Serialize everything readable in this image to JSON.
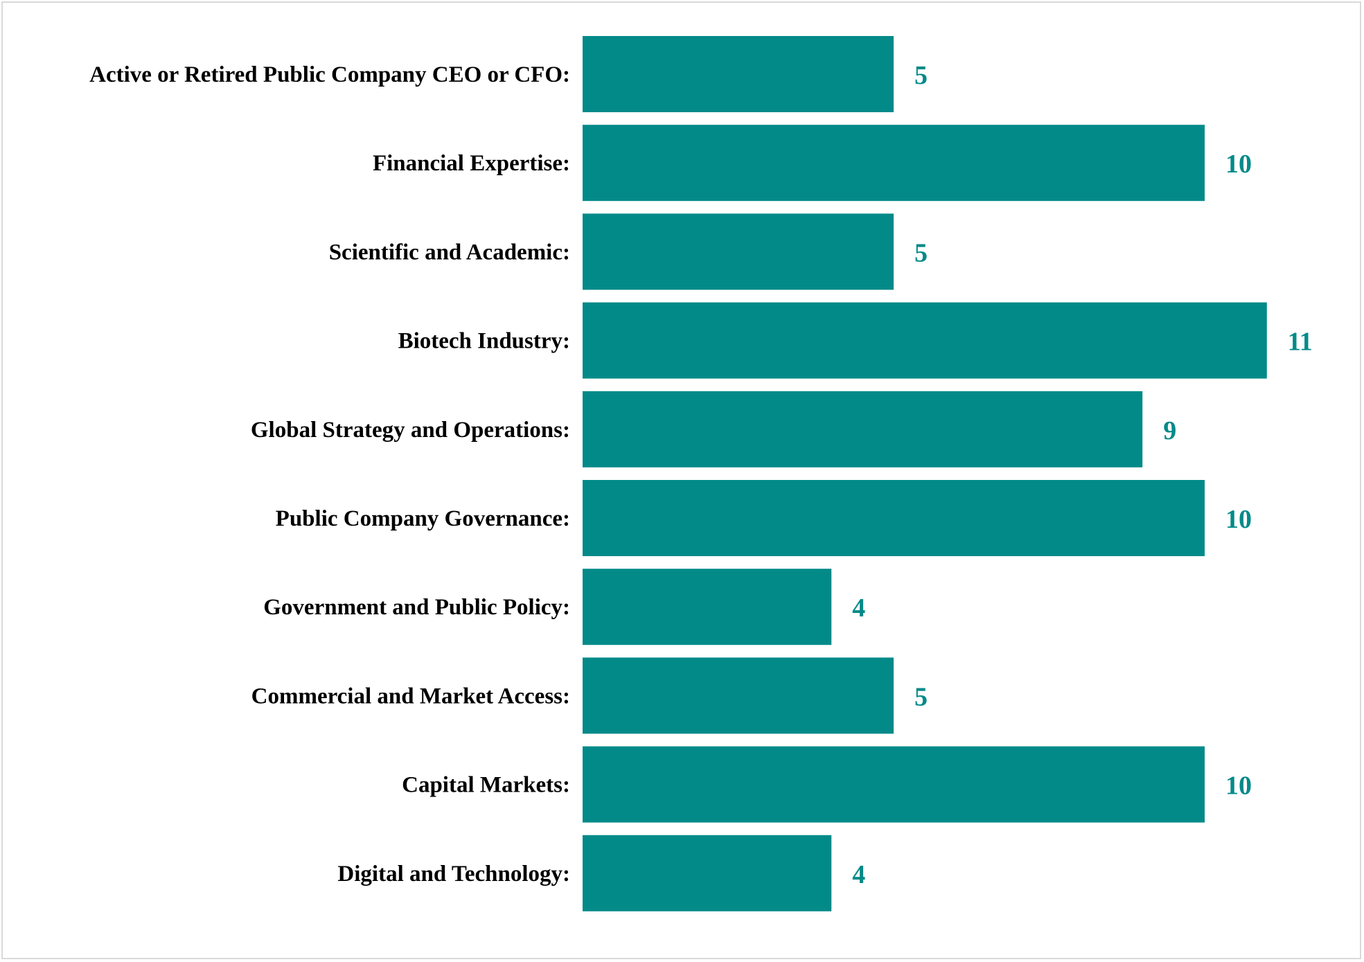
{
  "chart_data": {
    "type": "bar",
    "orientation": "horizontal",
    "title": "",
    "xlabel": "",
    "ylabel": "",
    "xlim": [
      0,
      11
    ],
    "grid": false,
    "legend": "none",
    "categories": [
      "Active or Retired Public Company CEO or CFO:",
      "Financial Expertise:",
      "Scientific and Academic:",
      "Biotech Industry:",
      "Global Strategy and Operations:",
      "Public Company Governance:",
      "Government and Public Policy:",
      "Commercial and Market Access:",
      "Capital Markets:",
      "Digital and Technology:"
    ],
    "values": [
      5,
      10,
      5,
      11,
      9,
      10,
      4,
      5,
      10,
      4
    ],
    "data_labels": [
      "5",
      "10",
      "5",
      "11",
      "9",
      "10",
      "4",
      "5",
      "10",
      "4"
    ],
    "bar_color": "#028a89",
    "label_color": "#028a89"
  }
}
